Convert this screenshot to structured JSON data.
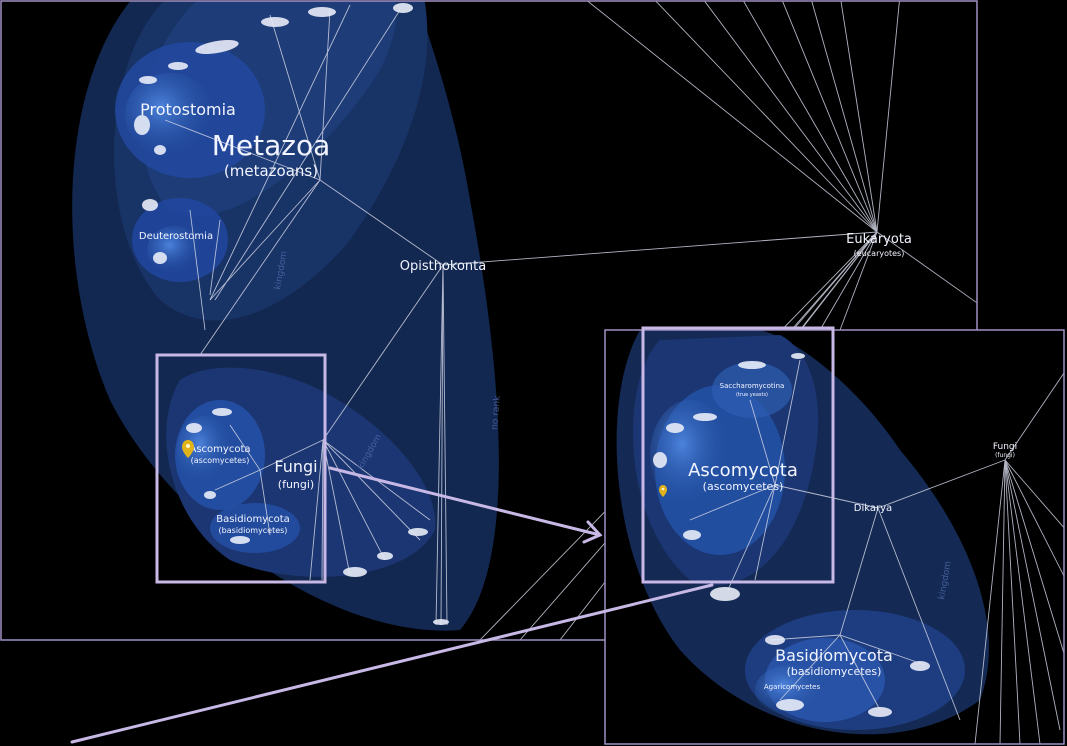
{
  "colors": {
    "background": "#000000",
    "frame": "#9f90c4",
    "branch": "#d0d4e4",
    "label": "#f2f4ff",
    "highlight": "#c7b8e6",
    "pin": "#e0b21b",
    "clade_outer": "#152a52",
    "clade_mid": "#1d3a72",
    "clade_inner": "#2b58a8"
  },
  "main_view": {
    "labels": {
      "protostomia": "Protostomia",
      "metazoa": "Metazoa",
      "metazoa_common": "(metazoans)",
      "deuterostomia": "Deuterostomia",
      "opisthokonta": "Opisthokonta",
      "eukaryota": "Eukaryota",
      "eukaryota_common": "(eucaryotes)",
      "ascomycota": "Ascomycota",
      "ascomycota_common": "(ascomycetes)",
      "fungi": "Fungi",
      "fungi_common": "(fungi)",
      "basidiomycota": "Basidiomycota",
      "basidiomycota_common": "(basidiomycetes)",
      "rank_no_rank": "no rank",
      "rank_kingdom": "kingdom"
    }
  },
  "zoom_view": {
    "labels": {
      "saccharomycotina": "Saccharomycotina",
      "saccharomycotina_common": "(true yeasts)",
      "ascomycota": "Ascomycota",
      "ascomycota_common": "(ascomycetes)",
      "dikarya": "Dikarya",
      "fungi": "Fungi",
      "fungi_common": "(fungi)",
      "basidiomycota": "Basidiomycota",
      "basidiomycota_common": "(basidiomycetes)",
      "agaricomycetes": "Agaricomycetes"
    }
  },
  "icons": [
    "location-pin-icon"
  ]
}
